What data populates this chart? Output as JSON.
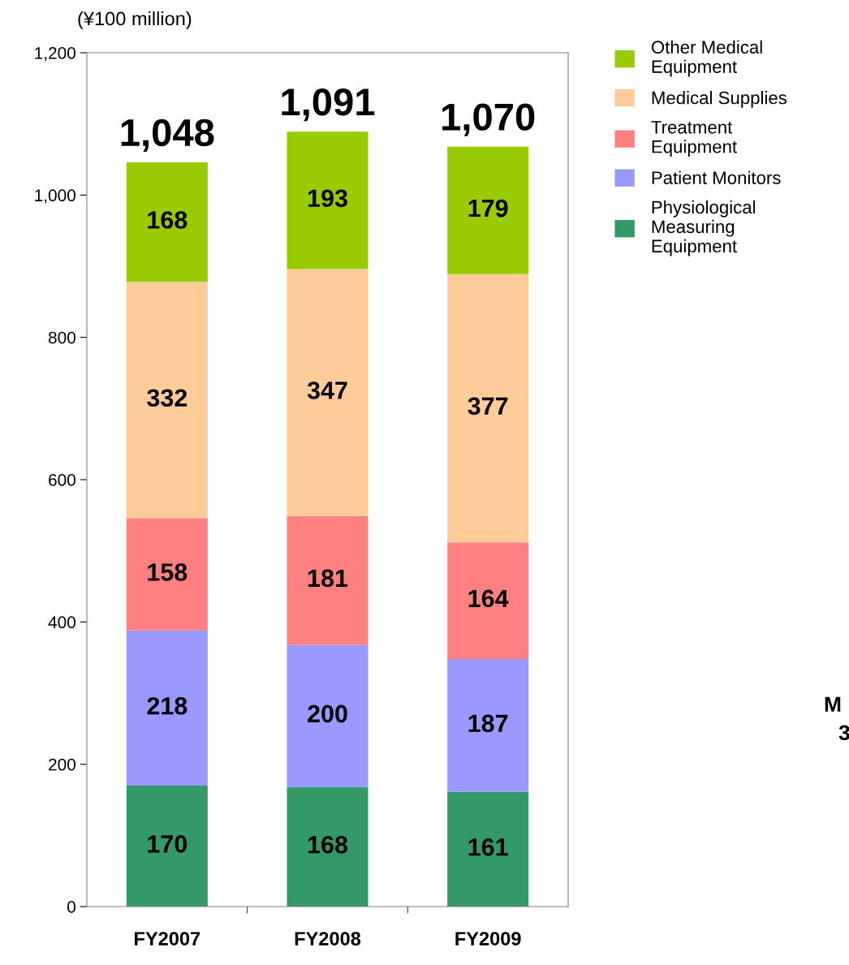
{
  "chart_data": {
    "type": "bar",
    "stacked": true,
    "ylabel": "(¥100 million)",
    "categories": [
      "FY2007",
      "FY2008",
      "FY2009"
    ],
    "series": [
      {
        "name": "Physiological\nMeasuring\nEquipment",
        "color": "#339966",
        "values": [
          170,
          168,
          161
        ]
      },
      {
        "name": "Patient Monitors",
        "color": "#9999ff",
        "values": [
          218,
          200,
          187
        ]
      },
      {
        "name": "Treatment\nEquipment",
        "color": "#ff8080",
        "values": [
          158,
          181,
          164
        ]
      },
      {
        "name": "Medical Supplies",
        "color": "#ffcc99",
        "values": [
          332,
          347,
          377
        ]
      },
      {
        "name": "Other Medical\nEquipment",
        "color": "#99cc00",
        "values": [
          168,
          193,
          179
        ]
      }
    ],
    "totals": [
      "1,048",
      "1,091",
      "1,070"
    ],
    "data_labels": true,
    "ylim": [
      0,
      1200
    ],
    "yticks": [
      0,
      200,
      400,
      600,
      800,
      {
        "value": 1000,
        "label": "1,000"
      },
      {
        "value": 1200,
        "label": "1,200"
      }
    ],
    "grid": false,
    "legend": "right",
    "annotations": [
      "M",
      "3"
    ]
  }
}
